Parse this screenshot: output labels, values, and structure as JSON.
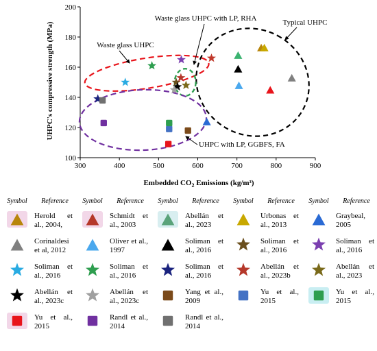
{
  "chart_data": {
    "type": "scatter",
    "xlabel": "Embedded CO₂ Emissions (kg/m³)",
    "ylabel": "UHPC's compressive strength (MPa)",
    "xlim": [
      300,
      900
    ],
    "ylim": [
      100,
      200
    ],
    "xticks": [
      "300",
      "400",
      "500",
      "600",
      "700",
      "800",
      "900"
    ],
    "yticks": [
      "100",
      "120",
      "140",
      "160",
      "180",
      "200"
    ],
    "grid": false,
    "points": [
      {
        "label": "Herold et al., 2004",
        "shape": "triangle",
        "color": "#b8860b",
        "x": 762,
        "y": 173
      },
      {
        "label": "Schmidt et al., 2003",
        "shape": "triangle",
        "color": "#e8141b",
        "x": 785,
        "y": 145
      },
      {
        "label": "Abellán et al., 2023",
        "shape": "triangle",
        "color": "#3cb371",
        "x": 703,
        "y": 168
      },
      {
        "label": "Urbonas et al., 2013",
        "shape": "triangle",
        "color": "#c8a800",
        "x": 770,
        "y": 173
      },
      {
        "label": "Graybeal, 2005",
        "shape": "triangle",
        "color": "#2a6ad4",
        "x": 623,
        "y": 124
      },
      {
        "label": "Corinaldesi et al, 2012",
        "shape": "triangle",
        "color": "#808080",
        "x": 840,
        "y": 153
      },
      {
        "label": "Oliver et al., 1997",
        "shape": "triangle",
        "color": "#4aa8ee",
        "x": 705,
        "y": 148
      },
      {
        "label": "Soliman et al., 2016",
        "shape": "triangle",
        "color": "#000000",
        "x": 703,
        "y": 159
      },
      {
        "label": "Soliman et al., 2016",
        "shape": "star",
        "color": "#6b4f1d",
        "x": 545,
        "y": 150
      },
      {
        "label": "Soliman et al., 2016",
        "shape": "star",
        "color": "#7b3fb0",
        "x": 558,
        "y": 165
      },
      {
        "label": "Soliman et al., 2016",
        "shape": "star",
        "color": "#29abe2",
        "x": 415,
        "y": 150
      },
      {
        "label": "Soliman et al., 2016",
        "shape": "star",
        "color": "#2e9e4f",
        "x": 483,
        "y": 161
      },
      {
        "label": "Soliman et al., 2016",
        "shape": "star",
        "color": "#1a237e",
        "x": 345,
        "y": 139
      },
      {
        "label": "Abellán et al., 2023b",
        "shape": "star",
        "color": "#b5382a",
        "x": 557,
        "y": 153
      },
      {
        "label": "Abellán et al., 2023",
        "shape": "star",
        "color": "#7a6a1a",
        "x": 570,
        "y": 148
      },
      {
        "label": "Abellán et al., 2023c",
        "shape": "star",
        "color": "#000000",
        "x": 548,
        "y": 147
      },
      {
        "label": "Abellán et al., 2023c",
        "shape": "star",
        "color": "#a0a0a0",
        "x": 540,
        "y": 145
      },
      {
        "label": "Yang et al., 2009",
        "shape": "square",
        "color": "#7b4a1a",
        "x": 575,
        "y": 118
      },
      {
        "label": "Yu et al., 2015",
        "shape": "square",
        "color": "#4472c4",
        "x": 527,
        "y": 119
      },
      {
        "label": "Yu et al., 2015",
        "shape": "square",
        "color": "#2e9e4f",
        "x": 527,
        "y": 123
      },
      {
        "label": "Yu et al., 2015",
        "shape": "square",
        "color": "#e8141b",
        "x": 525,
        "y": 109
      },
      {
        "label": "Randl et al., 2014",
        "shape": "square",
        "color": "#7030a0",
        "x": 360,
        "y": 123
      },
      {
        "label": "Randl et al., 2014",
        "shape": "square",
        "color": "#707070",
        "x": 357,
        "y": 138
      },
      {
        "label": "",
        "shape": "star",
        "color": "#c0392b",
        "x": 635,
        "y": 166
      }
    ],
    "annotations": [
      {
        "text": "Waste glass UHPC with LP, RHA"
      },
      {
        "text": "Typical UHPC"
      },
      {
        "text": "Waste glass UHPC"
      },
      {
        "text": "UHPC with LP, GGBFS, FA"
      }
    ]
  },
  "legend": {
    "header_symbol": "Symbol",
    "header_reference": "Reference",
    "rows": [
      [
        {
          "shape": "triangle",
          "color": "#b8860b",
          "bg": "#f2d7e8",
          "ref": "Herold et al., 2004,"
        },
        {
          "shape": "triangle",
          "color": "#b5382a",
          "bg": "#f2d7e8",
          "ref": "Schmidt et al., 2003"
        },
        {
          "shape": "triangle",
          "color": "#5aa37a",
          "bg": "#d8eef0",
          "ref": "Abellán et al., 2023"
        },
        {
          "shape": "triangle",
          "color": "#c8a800",
          "bg": "",
          "ref": "Urbonas et al., 2013"
        },
        {
          "shape": "triangle",
          "color": "#2a6ad4",
          "bg": "",
          "ref": "Graybeal, 2005"
        }
      ],
      [
        {
          "shape": "triangle",
          "color": "#808080",
          "bg": "",
          "ref": "Corinaldesi et al, 2012"
        },
        {
          "shape": "triangle",
          "color": "#4aa8ee",
          "bg": "",
          "ref": "Oliver et al., 1997"
        },
        {
          "shape": "triangle",
          "color": "#000000",
          "bg": "",
          "ref": "Soliman et al., 2016"
        },
        {
          "shape": "star",
          "color": "#6b4f1d",
          "bg": "",
          "ref": "Soliman et al., 2016"
        },
        {
          "shape": "star",
          "color": "#7b3fb0",
          "bg": "",
          "ref": "Soliman et al., 2016"
        }
      ],
      [
        {
          "shape": "star",
          "color": "#29abe2",
          "bg": "",
          "ref": "Soliman et al., 2016"
        },
        {
          "shape": "star",
          "color": "#2e9e4f",
          "bg": "",
          "ref": "Soliman et al., 2016"
        },
        {
          "shape": "star",
          "color": "#1a237e",
          "bg": "",
          "ref": "Soliman et al., 2016"
        },
        {
          "shape": "star",
          "color": "#b5382a",
          "bg": "",
          "ref": "Abellán et al., 2023b"
        },
        {
          "shape": "star",
          "color": "#7a6a1a",
          "bg": "",
          "ref": "Abellán et al., 2023"
        }
      ],
      [
        {
          "shape": "star",
          "color": "#000000",
          "bg": "",
          "ref": "Abellán et al., 2023c"
        },
        {
          "shape": "star",
          "color": "#a0a0a0",
          "bg": "",
          "ref": "Abellán et al., 2023c"
        },
        {
          "shape": "square",
          "color": "#7b4a1a",
          "bg": "",
          "ref": "Yang et al., 2009"
        },
        {
          "shape": "square",
          "color": "#4472c4",
          "bg": "",
          "ref": "Yu et al., 2015"
        },
        {
          "shape": "square",
          "color": "#2e9e4f",
          "bg": "#c9eef2",
          "ref": "Yu et al., 2015"
        }
      ],
      [
        {
          "shape": "square",
          "color": "#e8141b",
          "bg": "#f2d7e8",
          "ref": "Yu et al., 2015"
        },
        {
          "shape": "square",
          "color": "#7030a0",
          "bg": "",
          "ref": "Randl et al., 2014"
        },
        {
          "shape": "square",
          "color": "#707070",
          "bg": "",
          "ref": "Randl et al., 2014"
        },
        null,
        null
      ]
    ]
  }
}
